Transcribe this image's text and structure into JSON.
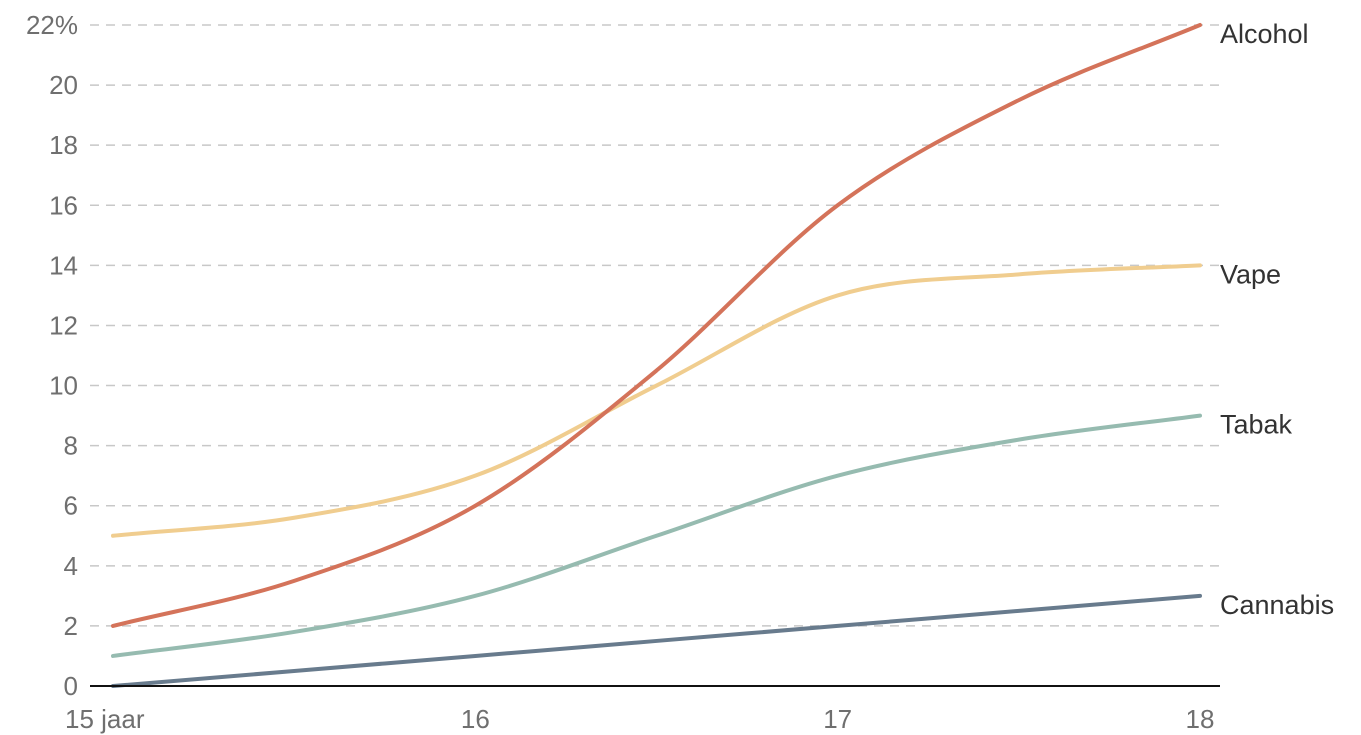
{
  "chart_data": {
    "type": "line",
    "title": "",
    "xlabel": "",
    "ylabel": "",
    "x": [
      15,
      15.5,
      16,
      16.5,
      17,
      17.5,
      18
    ],
    "x_ticks": [
      {
        "value": 15,
        "label": "15 jaar"
      },
      {
        "value": 16,
        "label": "16"
      },
      {
        "value": 17,
        "label": "17"
      },
      {
        "value": 18,
        "label": "18"
      }
    ],
    "y_ticks": [
      {
        "value": 0,
        "label": "0"
      },
      {
        "value": 2,
        "label": "2"
      },
      {
        "value": 4,
        "label": "4"
      },
      {
        "value": 6,
        "label": "6"
      },
      {
        "value": 8,
        "label": "8"
      },
      {
        "value": 10,
        "label": "10"
      },
      {
        "value": 12,
        "label": "12"
      },
      {
        "value": 14,
        "label": "14"
      },
      {
        "value": 16,
        "label": "16"
      },
      {
        "value": 18,
        "label": "18"
      },
      {
        "value": 20,
        "label": "20"
      },
      {
        "value": 22,
        "label": "22%"
      }
    ],
    "xlim": [
      15,
      18
    ],
    "ylim": [
      0,
      22
    ],
    "grid": "horizontal-dashed",
    "legend": "end-of-line labels",
    "series": [
      {
        "name": "Alcohol",
        "color": "#d4735a",
        "values": [
          2,
          3.5,
          6,
          10.5,
          16,
          19.5,
          22
        ]
      },
      {
        "name": "Vape",
        "color": "#f0cd8f",
        "values": [
          5,
          5.6,
          7,
          10,
          13,
          13.7,
          14
        ]
      },
      {
        "name": "Tabak",
        "color": "#96bbb0",
        "values": [
          1,
          1.8,
          3,
          5,
          7,
          8.2,
          9
        ]
      },
      {
        "name": "Cannabis",
        "color": "#687b8d",
        "values": [
          0,
          0.5,
          1,
          1.5,
          2,
          2.5,
          3
        ]
      }
    ]
  }
}
